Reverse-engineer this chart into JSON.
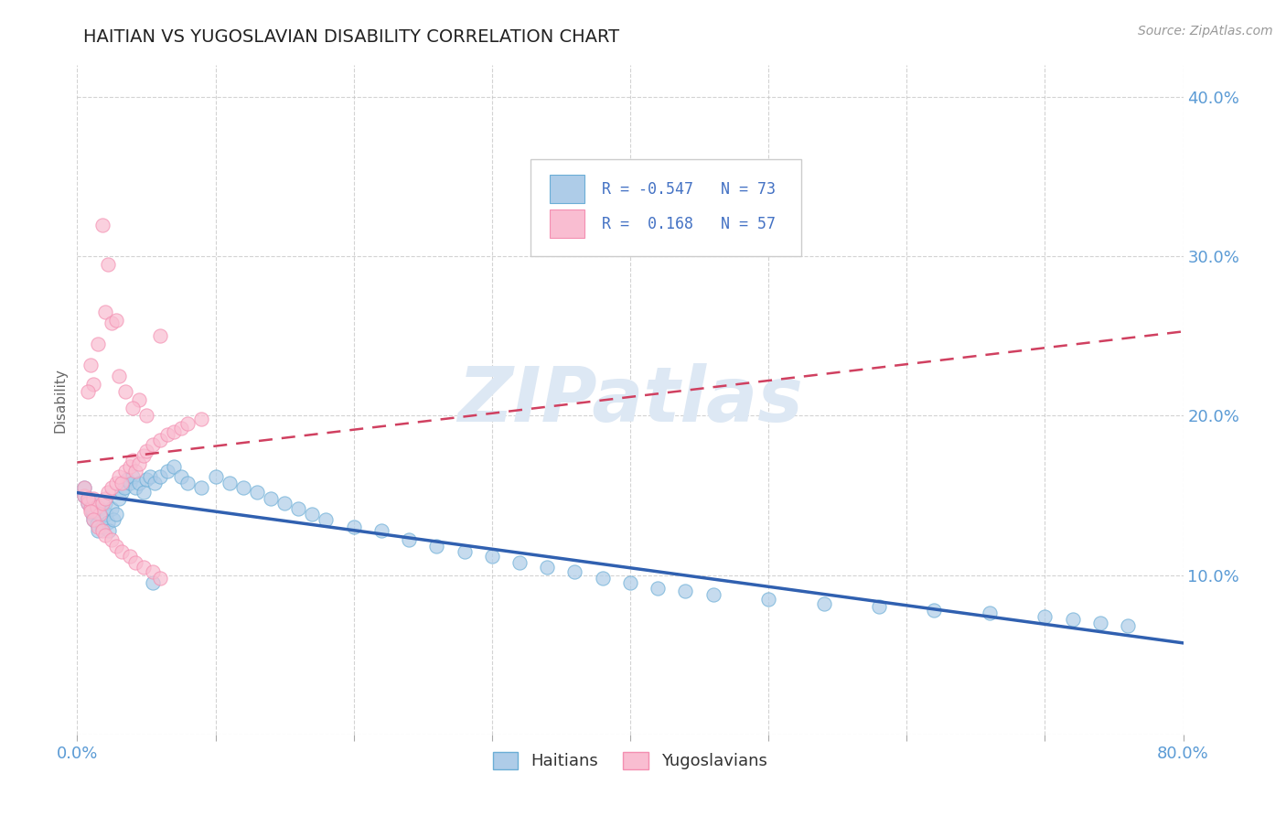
{
  "title": "HAITIAN VS YUGOSLAVIAN DISABILITY CORRELATION CHART",
  "source_text": "Source: ZipAtlas.com",
  "ylabel_label": "Disability",
  "x_min": 0.0,
  "x_max": 0.8,
  "y_min": 0.0,
  "y_max": 0.42,
  "x_ticks": [
    0.0,
    0.1,
    0.2,
    0.3,
    0.4,
    0.5,
    0.6,
    0.7,
    0.8
  ],
  "x_tick_labels": [
    "0.0%",
    "",
    "",
    "",
    "",
    "",
    "",
    "",
    "80.0%"
  ],
  "y_ticks": [
    0.0,
    0.1,
    0.2,
    0.3,
    0.4
  ],
  "y_tick_labels": [
    "",
    "10.0%",
    "20.0%",
    "30.0%",
    "40.0%"
  ],
  "haitian_edge_color": "#6baed6",
  "haitian_face_color": "#aecce8",
  "yugoslav_edge_color": "#f48fb1",
  "yugoslav_face_color": "#f9bdd1",
  "trend_haitian_color": "#3060b0",
  "trend_yugoslav_color": "#d04060",
  "R_haitian": -0.547,
  "N_haitian": 73,
  "R_yugoslav": 0.168,
  "N_yugoslav": 57,
  "background_color": "#ffffff",
  "grid_color": "#c8c8c8",
  "title_color": "#222222",
  "axis_label_color": "#5b9bd5",
  "watermark_text": "ZIPatlas",
  "watermark_color": "#dde8f4",
  "legend_text_color": "#4472c4",
  "haitian_x": [
    0.005,
    0.008,
    0.009,
    0.01,
    0.011,
    0.012,
    0.013,
    0.014,
    0.015,
    0.016,
    0.018,
    0.018,
    0.02,
    0.021,
    0.022,
    0.023,
    0.025,
    0.026,
    0.028,
    0.03,
    0.032,
    0.034,
    0.036,
    0.038,
    0.04,
    0.042,
    0.045,
    0.048,
    0.05,
    0.053,
    0.056,
    0.06,
    0.065,
    0.07,
    0.075,
    0.08,
    0.09,
    0.1,
    0.11,
    0.12,
    0.13,
    0.14,
    0.15,
    0.16,
    0.17,
    0.18,
    0.2,
    0.22,
    0.24,
    0.26,
    0.28,
    0.3,
    0.32,
    0.34,
    0.36,
    0.38,
    0.4,
    0.42,
    0.44,
    0.46,
    0.5,
    0.54,
    0.58,
    0.62,
    0.66,
    0.7,
    0.72,
    0.74,
    0.76,
    0.005,
    0.008,
    0.012,
    0.055
  ],
  "haitian_y": [
    0.15,
    0.145,
    0.148,
    0.143,
    0.138,
    0.135,
    0.14,
    0.132,
    0.128,
    0.142,
    0.136,
    0.13,
    0.145,
    0.138,
    0.133,
    0.128,
    0.142,
    0.135,
    0.138,
    0.148,
    0.152,
    0.155,
    0.16,
    0.158,
    0.162,
    0.155,
    0.158,
    0.152,
    0.16,
    0.162,
    0.158,
    0.162,
    0.165,
    0.168,
    0.162,
    0.158,
    0.155,
    0.162,
    0.158,
    0.155,
    0.152,
    0.148,
    0.145,
    0.142,
    0.138,
    0.135,
    0.13,
    0.128,
    0.122,
    0.118,
    0.115,
    0.112,
    0.108,
    0.105,
    0.102,
    0.098,
    0.095,
    0.092,
    0.09,
    0.088,
    0.085,
    0.082,
    0.08,
    0.078,
    0.076,
    0.074,
    0.072,
    0.07,
    0.068,
    0.155,
    0.148,
    0.14,
    0.095
  ],
  "yugoslav_x": [
    0.005,
    0.008,
    0.01,
    0.012,
    0.014,
    0.016,
    0.018,
    0.02,
    0.022,
    0.025,
    0.028,
    0.03,
    0.032,
    0.035,
    0.038,
    0.04,
    0.042,
    0.045,
    0.048,
    0.05,
    0.055,
    0.06,
    0.065,
    0.07,
    0.075,
    0.08,
    0.09,
    0.005,
    0.008,
    0.01,
    0.012,
    0.015,
    0.018,
    0.02,
    0.025,
    0.028,
    0.032,
    0.038,
    0.042,
    0.048,
    0.055,
    0.06,
    0.02,
    0.025,
    0.015,
    0.01,
    0.03,
    0.012,
    0.008,
    0.035,
    0.045,
    0.04,
    0.05,
    0.018,
    0.022,
    0.028,
    0.06
  ],
  "yugoslav_y": [
    0.15,
    0.145,
    0.142,
    0.148,
    0.143,
    0.138,
    0.145,
    0.148,
    0.152,
    0.155,
    0.158,
    0.162,
    0.158,
    0.165,
    0.168,
    0.172,
    0.165,
    0.17,
    0.175,
    0.178,
    0.182,
    0.185,
    0.188,
    0.19,
    0.192,
    0.195,
    0.198,
    0.155,
    0.148,
    0.14,
    0.135,
    0.13,
    0.128,
    0.125,
    0.122,
    0.118,
    0.115,
    0.112,
    0.108,
    0.105,
    0.102,
    0.098,
    0.265,
    0.258,
    0.245,
    0.232,
    0.225,
    0.22,
    0.215,
    0.215,
    0.21,
    0.205,
    0.2,
    0.32,
    0.295,
    0.26,
    0.25
  ]
}
